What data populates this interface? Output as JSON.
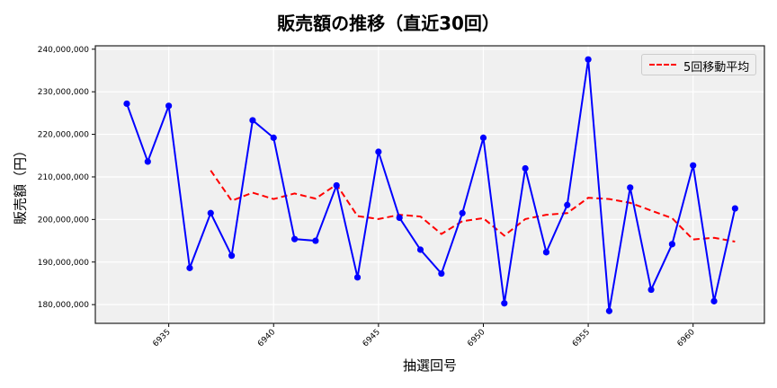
{
  "chart_data": {
    "type": "line",
    "title": "販売額の推移（直近30回）",
    "xlabel": "抽選回号",
    "ylabel": "販売額（円）",
    "x": [
      6933,
      6934,
      6935,
      6936,
      6937,
      6938,
      6939,
      6940,
      6941,
      6942,
      6943,
      6944,
      6945,
      6946,
      6947,
      6948,
      6949,
      6950,
      6951,
      6952,
      6953,
      6954,
      6955,
      6956,
      6957,
      6958,
      6959,
      6960,
      6961,
      6962
    ],
    "series": [
      {
        "name": "販売額",
        "color": "#0000ff",
        "style": "solid",
        "marker": "circle",
        "values": [
          227200000,
          213600000,
          226700000,
          188600000,
          201500000,
          191500000,
          223300000,
          219200000,
          195400000,
          195000000,
          208000000,
          186400000,
          215900000,
          200400000,
          192900000,
          187300000,
          201500000,
          219200000,
          180300000,
          212000000,
          192300000,
          203400000,
          237600000,
          178500000,
          207500000,
          183500000,
          194200000,
          212700000,
          180800000,
          202600000
        ]
      },
      {
        "name": "5回移動平均",
        "color": "#ff0000",
        "style": "dashed",
        "values": [
          null,
          null,
          null,
          null,
          211500000,
          204400000,
          206300000,
          204800000,
          206100000,
          204900000,
          208200000,
          200800000,
          200100000,
          201100000,
          200700000,
          196600000,
          199600000,
          200300000,
          196200000,
          200100000,
          201100000,
          201500000,
          205100000,
          204800000,
          203900000,
          202100000,
          200300000,
          195300000,
          195700000,
          194800000
        ]
      }
    ],
    "xticks": [
      6935,
      6940,
      6945,
      6950,
      6955,
      6960
    ],
    "yticks": [
      180000000,
      190000000,
      200000000,
      210000000,
      220000000,
      230000000,
      240000000
    ],
    "ytick_labels": [
      "180,000,000",
      "190,000,000",
      "200,000,000",
      "210,000,000",
      "220,000,000",
      "230,000,000",
      "240,000,000"
    ],
    "xlim": [
      6931.5,
      6963.4
    ],
    "ylim": [
      175600000,
      240800000
    ],
    "grid": true,
    "legend": {
      "position": "upper right",
      "entries": [
        "5回移動平均"
      ]
    },
    "background": "#f0f0f0"
  }
}
